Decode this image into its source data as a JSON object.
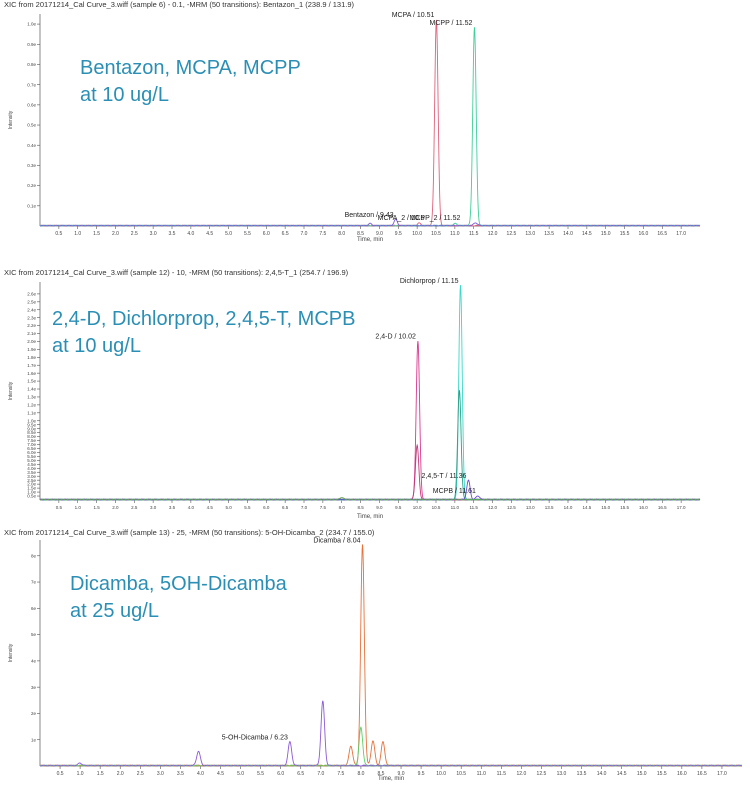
{
  "chart_data": [
    {
      "type": "line",
      "header": "XIC from 20171214_Cal Curve_3.wiff (sample 6) - 0.1, -MRM (50 transitions): Bentazon_1 (238.9 / 131.9)",
      "overlay_lines": [
        "Bentazon, MCPA, MCPP",
        "at 10 ug/L"
      ],
      "xlabel": "Time, min",
      "ylabel": "Intensity",
      "xlim": [
        0,
        17.5
      ],
      "ylim": [
        0,
        1.05
      ],
      "yticks": [
        "0.1e",
        "0.2e",
        "0.3e",
        "0.4e",
        "0.5e",
        "0.6e",
        "0.7e",
        "0.8e",
        "0.9e",
        "1.0e"
      ],
      "ytick_values": [
        0.1,
        0.2,
        0.3,
        0.4,
        0.5,
        0.6,
        0.7,
        0.8,
        0.9,
        1.0
      ],
      "series": [
        {
          "color": "#e0607a",
          "peaks": [
            {
              "rt": 10.51,
              "h": 1.02
            },
            {
              "rt": 10.05,
              "h": 0.012
            }
          ]
        },
        {
          "color": "#3ecf9a",
          "peaks": [
            {
              "rt": 11.52,
              "h": 0.98
            },
            {
              "rt": 11.0,
              "h": 0.01
            }
          ]
        },
        {
          "color": "#7b5bd8",
          "peaks": [
            {
              "rt": 9.43,
              "h": 0.03
            },
            {
              "rt": 8.75,
              "h": 0.01
            },
            {
              "rt": 11.55,
              "h": 0.015
            }
          ]
        }
      ],
      "peak_labels": [
        {
          "text": "MCPA / 10.51",
          "rt": 10.51,
          "h": 1.02
        },
        {
          "text": "MCPP / 11.52",
          "rt": 11.52,
          "h": 0.98
        },
        {
          "text": "Bentazon / 9.43",
          "rt": 9.43,
          "h": 0.03
        },
        {
          "text": "MCPA_2 / 10.5",
          "rt": 10.25,
          "h": 0.015
        },
        {
          "text": "MCPP_2 / 11.52",
          "rt": 11.2,
          "h": 0.015
        }
      ]
    },
    {
      "type": "line",
      "header": "XIC from 20171214_Cal Curve_3.wiff (sample 12) - 10, -MRM (50 transitions): 2,4,5-T_1 (254.7 / 196.9)",
      "overlay_lines": [
        "2,4-D, Dichlorprop, 2,4,5-T, MCPB",
        "at 10 ug/L"
      ],
      "xlabel": "Time, min",
      "ylabel": "Intensity",
      "xlim": [
        0,
        17.5
      ],
      "ylim": [
        0,
        2.75
      ],
      "yticks": [
        "0.5e",
        "1.0e",
        "1.5e",
        "2.0e",
        "2.5e",
        "3.0e",
        "3.5e",
        "4.0e",
        "4.5e",
        "5.0e",
        "5.5e",
        "6.0e",
        "6.5e",
        "7.0e",
        "7.5e",
        "8.0e",
        "8.5e",
        "9.0e",
        "9.5e",
        "1.0e",
        "1.1e",
        "1.2e",
        "1.3e",
        "1.4e",
        "1.5e",
        "1.6e",
        "1.7e",
        "1.8e",
        "1.9e",
        "2.0e",
        "2.1e",
        "2.2e",
        "2.3e",
        "2.4e",
        "2.5e",
        "2.6e"
      ],
      "ytick_values": [
        0.05,
        0.1,
        0.15,
        0.2,
        0.25,
        0.3,
        0.35,
        0.4,
        0.45,
        0.5,
        0.55,
        0.6,
        0.65,
        0.7,
        0.75,
        0.8,
        0.85,
        0.9,
        0.95,
        1.0,
        1.1,
        1.2,
        1.3,
        1.4,
        1.5,
        1.6,
        1.7,
        1.8,
        1.9,
        2.0,
        2.1,
        2.2,
        2.3,
        2.4,
        2.5,
        2.6
      ],
      "series": [
        {
          "color": "#d83a8e",
          "peaks": [
            {
              "rt": 10.02,
              "h": 2.0
            }
          ]
        },
        {
          "color": "#c2397a",
          "peaks": [
            {
              "rt": 10.0,
              "h": 0.68
            }
          ]
        },
        {
          "color": "#39d8c8",
          "peaks": [
            {
              "rt": 11.15,
              "h": 2.7
            }
          ]
        },
        {
          "color": "#2aa08a",
          "peaks": [
            {
              "rt": 11.12,
              "h": 1.38
            }
          ]
        },
        {
          "color": "#6a4bd0",
          "peaks": [
            {
              "rt": 11.36,
              "h": 0.24
            },
            {
              "rt": 11.61,
              "h": 0.05
            }
          ]
        },
        {
          "color": "#6aa84f",
          "peaks": [
            {
              "rt": 8.0,
              "h": 0.03
            }
          ]
        }
      ],
      "peak_labels": [
        {
          "text": "2,4-D / 10.02",
          "rt": 10.02,
          "h": 2.0
        },
        {
          "text": "Dichlorprop / 11.15",
          "rt": 11.15,
          "h": 2.7
        },
        {
          "text": "2,4,5-T / 11.36",
          "rt": 11.36,
          "h": 0.24
        },
        {
          "text": "MCPB / 11.61",
          "rt": 11.61,
          "h": 0.05
        }
      ]
    },
    {
      "type": "line",
      "header": "XIC from 20171214_Cal Curve_3.wiff (sample 13) - 25, -MRM (50 transitions): 5-OH-Dicamba_2 (234.7 / 155.0)",
      "overlay_lines": [
        "Dicamba, 5OH-Dicamba",
        "at 25 ug/L"
      ],
      "xlabel": "Time, min",
      "ylabel": "Intensity",
      "xlim": [
        0,
        17.5
      ],
      "ylim": [
        0,
        8.6
      ],
      "yticks": [
        "1e",
        "2e",
        "3e",
        "4e",
        "5e",
        "6e",
        "7e",
        "8e"
      ],
      "ytick_values": [
        1,
        2,
        3,
        4,
        5,
        6,
        7,
        8
      ],
      "series": [
        {
          "color": "#e8703a",
          "peaks": [
            {
              "rt": 8.04,
              "h": 8.4
            },
            {
              "rt": 8.3,
              "h": 0.95
            },
            {
              "rt": 8.55,
              "h": 0.9
            },
            {
              "rt": 7.75,
              "h": 0.75
            }
          ]
        },
        {
          "color": "#5dcf6a",
          "peaks": [
            {
              "rt": 8.0,
              "h": 1.45
            }
          ]
        },
        {
          "color": "#8a5ad8",
          "peaks": [
            {
              "rt": 3.95,
              "h": 0.55
            },
            {
              "rt": 6.23,
              "h": 0.9
            },
            {
              "rt": 7.05,
              "h": 2.45
            },
            {
              "rt": 1.0,
              "h": 0.1
            }
          ]
        }
      ],
      "peak_labels": [
        {
          "text": "Dicamba / 8.04",
          "rt": 8.04,
          "h": 8.4
        },
        {
          "text": "5-OH-Dicamba / 6.23",
          "rt": 6.23,
          "h": 0.9
        }
      ]
    }
  ],
  "xticks": [
    "0.5",
    "1.0",
    "1.5",
    "2.0",
    "2.5",
    "3.0",
    "3.5",
    "4.0",
    "4.5",
    "5.0",
    "5.5",
    "6.0",
    "6.5",
    "7.0",
    "7.5",
    "8.0",
    "8.5",
    "9.0",
    "9.5",
    "10.0",
    "10.5",
    "11.0",
    "11.5",
    "12.0",
    "12.5",
    "13.0",
    "13.5",
    "14.0",
    "14.5",
    "15.0",
    "15.5",
    "16.0",
    "16.5",
    "17.0"
  ],
  "xtick_values": [
    0.5,
    1.0,
    1.5,
    2.0,
    2.5,
    3.0,
    3.5,
    4.0,
    4.5,
    5.0,
    5.5,
    6.0,
    6.5,
    7.0,
    7.5,
    8.0,
    8.5,
    9.0,
    9.5,
    10.0,
    10.5,
    11.0,
    11.5,
    12.0,
    12.5,
    13.0,
    13.5,
    14.0,
    14.5,
    15.0,
    15.5,
    16.0,
    16.5,
    17.0
  ]
}
